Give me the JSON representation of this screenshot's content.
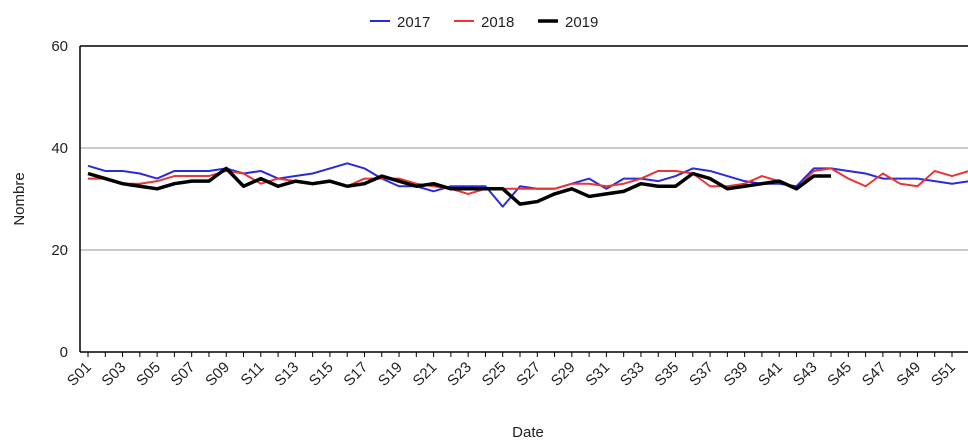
{
  "chart_data": {
    "type": "line",
    "x_label": "Date",
    "y_label": "Nombre",
    "categories": [
      "S01",
      null,
      "S03",
      null,
      "S05",
      null,
      "S07",
      null,
      "S09",
      null,
      "S11",
      null,
      "S13",
      null,
      "S15",
      null,
      "S17",
      null,
      "S19",
      null,
      "S21",
      null,
      "S23",
      null,
      "S25",
      null,
      "S27",
      null,
      "S29",
      null,
      "S31",
      null,
      "S33",
      null,
      "S35",
      null,
      "S37",
      null,
      "S39",
      null,
      "S41",
      null,
      "S43",
      null,
      "S45",
      null,
      "S47",
      null,
      "S49",
      null,
      "S51",
      null
    ],
    "series": [
      {
        "name": "2017",
        "color": "#2b2bd9",
        "width": 2,
        "values": [
          36.5,
          35.5,
          35.5,
          35,
          34,
          35.5,
          35.5,
          35.5,
          36,
          35,
          35.5,
          34,
          34.5,
          35,
          36,
          37,
          36,
          34,
          32.5,
          32.5,
          31.5,
          32.5,
          32.5,
          32.5,
          28.5,
          32.5,
          32,
          32,
          33,
          34,
          32,
          34,
          34,
          33.5,
          34.5,
          36,
          35.5,
          34.5,
          33.5,
          33,
          33,
          32.5,
          36,
          36,
          35.5,
          35,
          34,
          34,
          34,
          33.5,
          33,
          33.5
        ]
      },
      {
        "name": "2018",
        "color": "#e83535",
        "width": 2,
        "values": [
          34,
          34,
          33,
          33,
          33.5,
          34.5,
          34.5,
          34.5,
          35.5,
          35,
          33,
          34,
          33.5,
          33,
          33.5,
          32.5,
          34,
          34,
          34,
          33,
          32.5,
          32,
          31,
          32,
          32,
          32,
          32,
          32,
          33,
          33,
          32.5,
          33,
          34,
          35.5,
          35.5,
          35,
          32.5,
          32.5,
          33,
          34.5,
          33.5,
          32,
          35.5,
          36,
          34,
          32.5,
          35,
          33,
          32.5,
          35.5,
          34.5,
          35.5
        ]
      },
      {
        "name": "2019",
        "color": "#000000",
        "width": 3.5,
        "values": [
          35,
          34,
          33,
          32.5,
          32,
          33,
          33.5,
          33.5,
          36,
          32.5,
          34,
          32.5,
          33.5,
          33,
          33.5,
          32.5,
          33,
          34.5,
          33.5,
          32.5,
          33,
          32,
          32,
          32,
          32,
          29,
          29.5,
          31,
          32,
          30.5,
          31,
          31.5,
          33,
          32.5,
          32.5,
          35,
          34,
          32,
          32.5,
          33,
          33.5,
          32,
          34.5,
          34.5,
          null,
          null,
          null,
          null,
          null,
          null,
          null,
          null
        ]
      }
    ],
    "ylim": [
      0,
      60
    ],
    "yticks": [
      0,
      20,
      40,
      60
    ],
    "grid": true,
    "legend": "top"
  }
}
